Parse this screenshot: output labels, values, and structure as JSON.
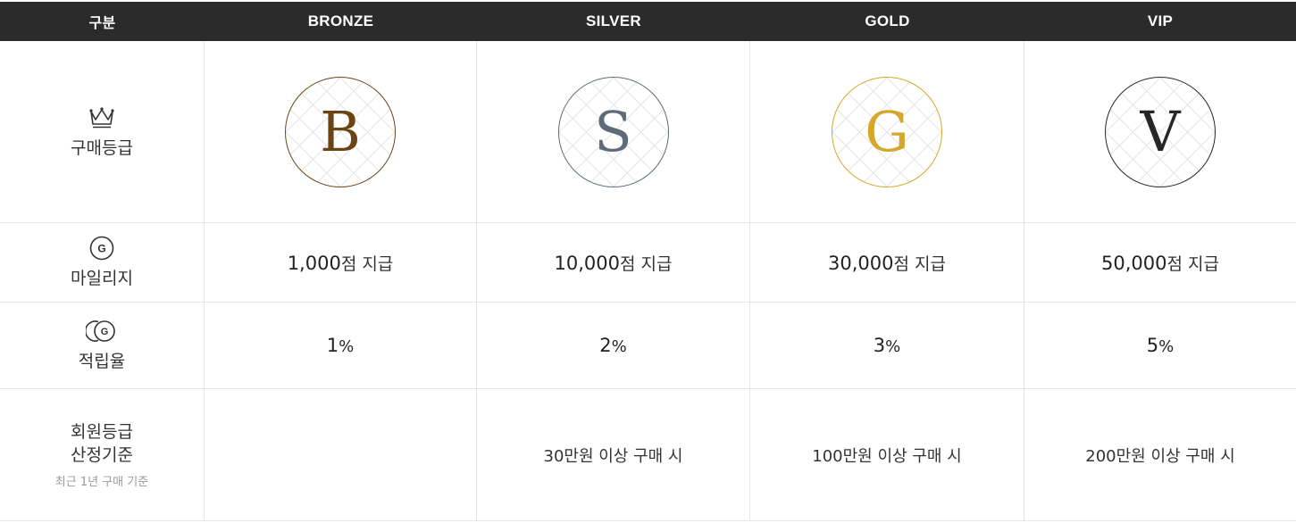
{
  "header": {
    "col0": "구분",
    "col1": "BRONZE",
    "col2": "SILVER",
    "col3": "GOLD",
    "col4": "VIP"
  },
  "rows": {
    "grade": {
      "label": "구매등급",
      "icon": "crown-icon"
    },
    "mileage": {
      "label": "마일리지",
      "icon": "g-coin-icon"
    },
    "rate": {
      "label": "적립율",
      "icon": "g-coins-stack-icon"
    },
    "criteria": {
      "label_line1": "회원등급",
      "label_line2": "산정기준",
      "sublabel": "최근 1년 구매 기준"
    }
  },
  "tiers": [
    {
      "name": "BRONZE",
      "letter": "B",
      "color": "#6b4414",
      "mileage_amount": "1,000",
      "mileage_unit": "점 지급",
      "rate_value": "1",
      "rate_unit": "%",
      "criteria": ""
    },
    {
      "name": "SILVER",
      "letter": "S",
      "color": "#5d6b78",
      "mileage_amount": "10,000",
      "mileage_unit": "점 지급",
      "rate_value": "2",
      "rate_unit": "%",
      "criteria": "30만원 이상 구매 시"
    },
    {
      "name": "GOLD",
      "letter": "G",
      "color": "#d4a62a",
      "mileage_amount": "30,000",
      "mileage_unit": "점 지급",
      "rate_value": "3",
      "rate_unit": "%",
      "criteria": "100만원 이상 구매 시"
    },
    {
      "name": "VIP",
      "letter": "V",
      "color": "#262626",
      "mileage_amount": "50,000",
      "mileage_unit": "점 지급",
      "rate_value": "5",
      "rate_unit": "%",
      "criteria": "200만원 이상 구매 시"
    }
  ]
}
